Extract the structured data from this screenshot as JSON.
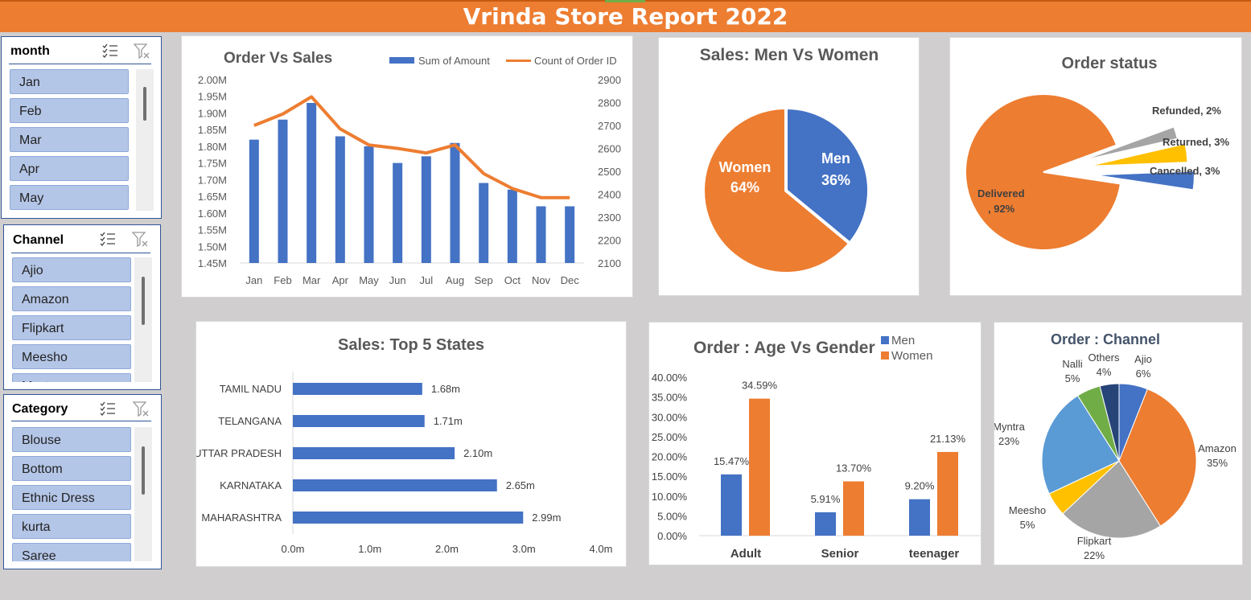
{
  "title": "Vrinda Store Report 2022",
  "slicers": {
    "month": {
      "label": "month",
      "items": [
        "Jan",
        "Feb",
        "Mar",
        "Apr",
        "May"
      ]
    },
    "channel": {
      "label": "Channel",
      "items": [
        "Ajio",
        "Amazon",
        "Flipkart",
        "Meesho",
        "Myntra"
      ]
    },
    "category": {
      "label": "Category",
      "items": [
        "Blouse",
        "Bottom",
        "Ethnic Dress",
        "kurta",
        "Saree"
      ]
    }
  },
  "colors": {
    "blue": "#4472c4",
    "orange": "#ed7d31",
    "gray": "#a5a5a5",
    "gold": "#ffc000",
    "lightblue": "#5b9bd5",
    "green": "#70ad47",
    "navy": "#264478"
  },
  "chart_data": [
    {
      "id": "order-vs-sales",
      "type": "bar",
      "title": "Order Vs Sales",
      "categories": [
        "Jan",
        "Feb",
        "Mar",
        "Apr",
        "May",
        "Jun",
        "Jul",
        "Aug",
        "Sep",
        "Oct",
        "Nov",
        "Dec"
      ],
      "series": [
        {
          "name": "Sum of Amount",
          "type": "bar",
          "axis": "left",
          "values": [
            1.82,
            1.88,
            1.93,
            1.83,
            1.8,
            1.75,
            1.77,
            1.81,
            1.69,
            1.67,
            1.62,
            1.62
          ]
        },
        {
          "name": "Count of Order ID",
          "type": "line",
          "axis": "right",
          "values": [
            2700,
            2750,
            2825,
            2685,
            2615,
            2600,
            2580,
            2615,
            2490,
            2425,
            2385,
            2385
          ]
        }
      ],
      "left_ticks": [
        "2.00M",
        "1.95M",
        "1.90M",
        "1.85M",
        "1.80M",
        "1.75M",
        "1.70M",
        "1.65M",
        "1.60M",
        "1.55M",
        "1.50M",
        "1.45M"
      ],
      "right_ticks": [
        "2900",
        "2800",
        "2700",
        "2600",
        "2500",
        "2400",
        "2300",
        "2200",
        "2100"
      ],
      "ylim_left": [
        1.45,
        2.0
      ],
      "ylim_right": [
        2100,
        2900
      ]
    },
    {
      "id": "men-vs-women",
      "type": "pie",
      "title": "Sales: Men Vs Women",
      "slices": [
        {
          "name": "Men",
          "value": 36,
          "label": "36%"
        },
        {
          "name": "Women",
          "value": 64,
          "label": "64%"
        }
      ]
    },
    {
      "id": "order-status",
      "type": "pie",
      "title": "Order status",
      "slices": [
        {
          "name": "Delivered",
          "value": 92,
          "label": ", 92%"
        },
        {
          "name": "Cancelled",
          "value": 3,
          "label": "Cancelled, 3%"
        },
        {
          "name": "Returned",
          "value": 3,
          "label": "Returned, 3%"
        },
        {
          "name": "Refunded",
          "value": 2,
          "label": "Refunded, 2%"
        }
      ]
    },
    {
      "id": "top-states",
      "type": "bar",
      "orientation": "horizontal",
      "title": "Sales: Top 5 States",
      "categories": [
        "TAMIL NADU",
        "TELANGANA",
        "UTTAR PRADESH",
        "KARNATAKA",
        "MAHARASHTRA"
      ],
      "values": [
        1.68,
        1.71,
        2.1,
        2.65,
        2.99
      ],
      "labels": [
        "1.68m",
        "1.71m",
        "2.10m",
        "2.65m",
        "2.99m"
      ],
      "x_ticks": [
        "0.0m",
        "1.0m",
        "2.0m",
        "3.0m",
        "4.0m"
      ],
      "xlim": [
        0,
        4
      ]
    },
    {
      "id": "age-vs-gender",
      "type": "bar",
      "title": "Order : Age Vs Gender",
      "categories": [
        "Adult",
        "Senior",
        "teenager"
      ],
      "series": [
        {
          "name": "Men",
          "values": [
            15.47,
            5.91,
            9.2
          ],
          "labels": [
            "15.47%",
            "5.91%",
            "9.20%"
          ]
        },
        {
          "name": "Women",
          "values": [
            34.59,
            13.7,
            21.13
          ],
          "labels": [
            "34.59%",
            "13.70%",
            "21.13%"
          ]
        }
      ],
      "y_ticks": [
        "40.00%",
        "35.00%",
        "30.00%",
        "25.00%",
        "20.00%",
        "15.00%",
        "10.00%",
        "5.00%",
        "0.00%"
      ],
      "ylim": [
        0,
        40
      ]
    },
    {
      "id": "channel",
      "type": "pie",
      "title": "Order : Channel",
      "slices": [
        {
          "name": "Ajio",
          "value": 6,
          "label": "6%"
        },
        {
          "name": "Amazon",
          "value": 35,
          "label": "35%"
        },
        {
          "name": "Flipkart",
          "value": 22,
          "label": "22%"
        },
        {
          "name": "Meesho",
          "value": 5,
          "label": "5%"
        },
        {
          "name": "Myntra",
          "value": 23,
          "label": "23%"
        },
        {
          "name": "Nalli",
          "value": 5,
          "label": "5%"
        },
        {
          "name": "Others",
          "value": 4,
          "label": "4%"
        }
      ]
    }
  ]
}
